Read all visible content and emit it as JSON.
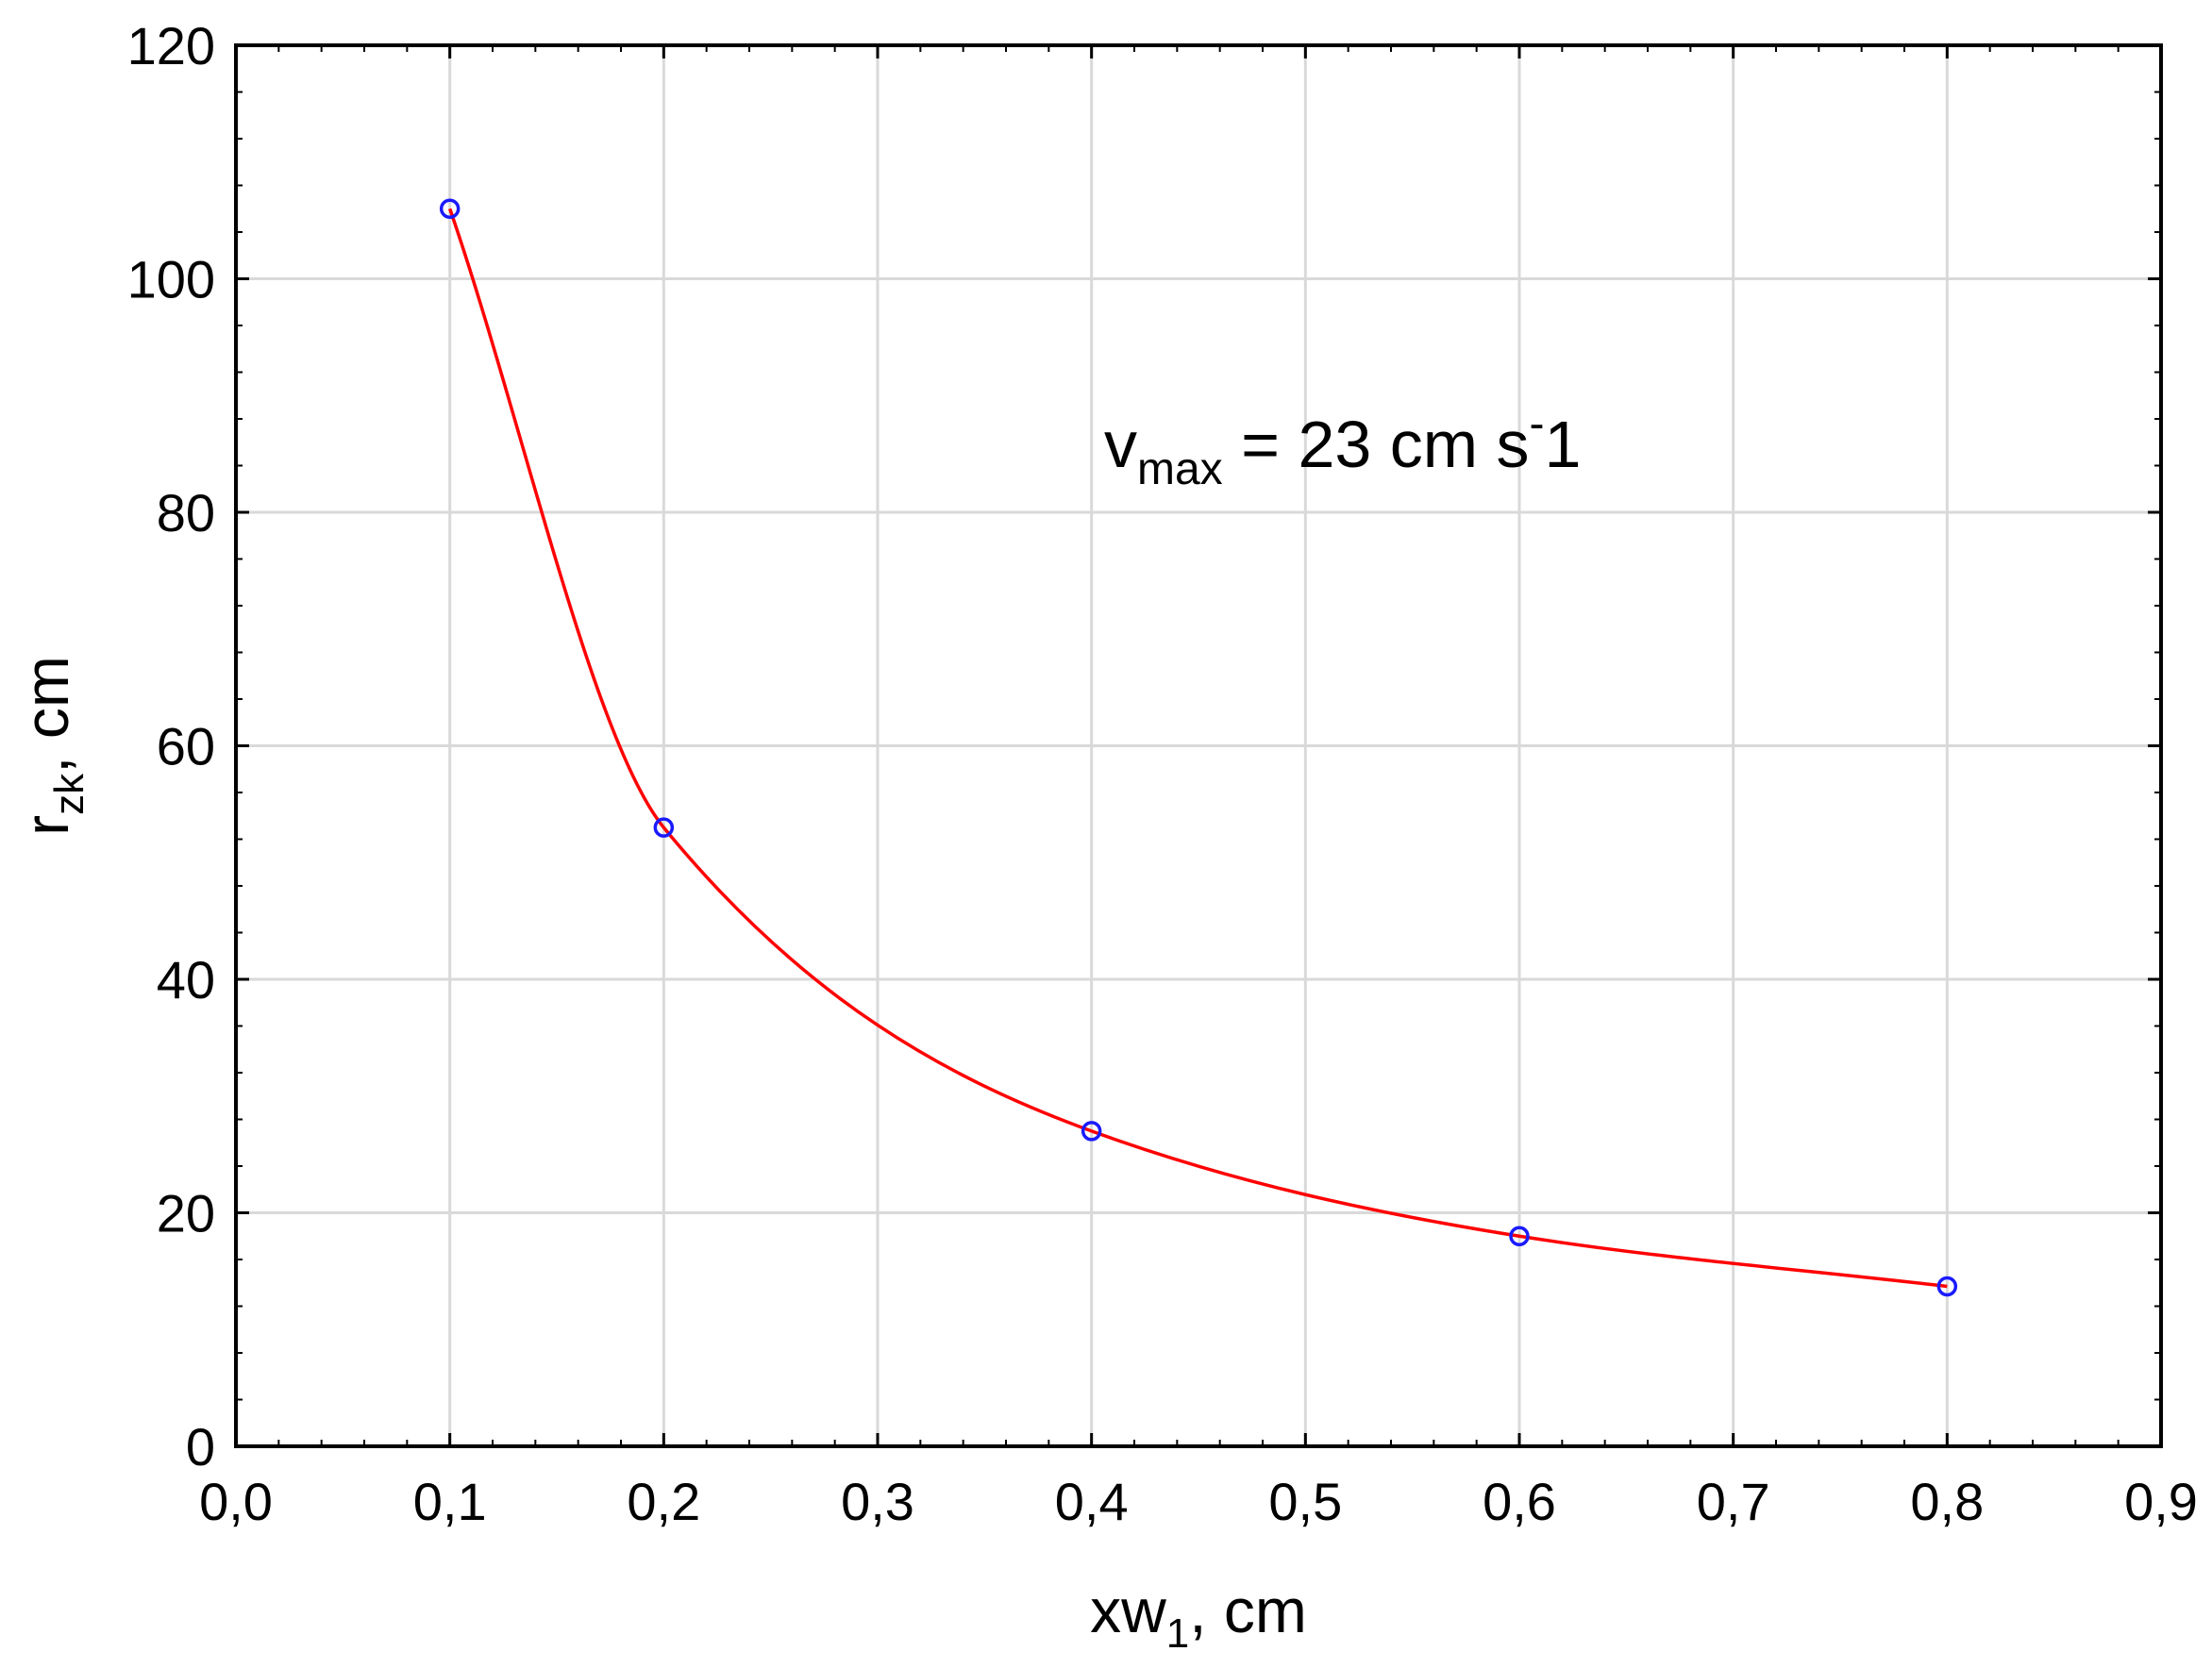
{
  "chart_data": {
    "type": "line",
    "title": "",
    "xlabel": {
      "base": "xw",
      "sub": "1",
      "suffix": ", cm"
    },
    "ylabel": {
      "base": "r",
      "sub": "zk",
      "suffix": ", cm"
    },
    "annotation": {
      "base": "v",
      "sub": "max",
      "middle": " = 23 cm s",
      "sup": "-",
      "end": "1"
    },
    "xlim": [
      0.0,
      0.9
    ],
    "ylim": [
      0,
      120
    ],
    "xticks": [
      {
        "value": 0.0,
        "label": "0,0"
      },
      {
        "value": 0.1,
        "label": "0,1"
      },
      {
        "value": 0.2,
        "label": "0,2"
      },
      {
        "value": 0.3,
        "label": "0,3"
      },
      {
        "value": 0.4,
        "label": "0,4"
      },
      {
        "value": 0.5,
        "label": "0,5"
      },
      {
        "value": 0.6,
        "label": "0,6"
      },
      {
        "value": 0.7,
        "label": "0,7"
      },
      {
        "value": 0.8,
        "label": "0,8"
      },
      {
        "value": 0.9,
        "label": "0,9"
      }
    ],
    "yticks": [
      {
        "value": 0,
        "label": "0"
      },
      {
        "value": 20,
        "label": "20"
      },
      {
        "value": 40,
        "label": "40"
      },
      {
        "value": 60,
        "label": "60"
      },
      {
        "value": 80,
        "label": "80"
      },
      {
        "value": 100,
        "label": "100"
      },
      {
        "value": 120,
        "label": "120"
      }
    ],
    "grid": true,
    "series": [
      {
        "name": "rzk",
        "x": [
          0.1,
          0.2,
          0.4,
          0.6,
          0.8
        ],
        "y": [
          106,
          53,
          27,
          18,
          13.7
        ],
        "marker_color": "#1a1aff",
        "line_color": "#ff0000",
        "smooth": true
      }
    ]
  }
}
